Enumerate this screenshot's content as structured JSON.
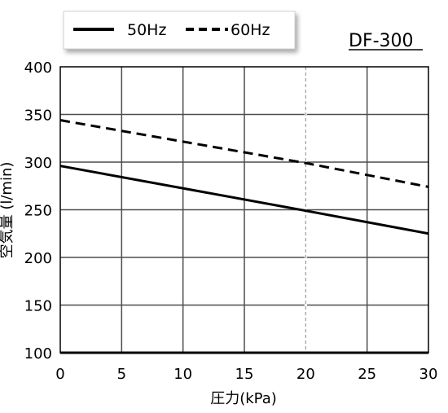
{
  "chart_data": {
    "type": "line",
    "model_label": "DF-300",
    "xlabel": "圧力(kPa)",
    "ylabel": "空気量 (l/min)",
    "xlim": [
      0,
      30
    ],
    "ylim": [
      100,
      400
    ],
    "xticks": [
      0,
      5,
      10,
      15,
      20,
      25,
      30
    ],
    "yticks": [
      100,
      150,
      200,
      250,
      300,
      350,
      400
    ],
    "grid": true,
    "reference_line_x": 20,
    "legend_position": "top-left",
    "series": [
      {
        "name": "50Hz",
        "style": "solid",
        "color": "#000000",
        "x": [
          0,
          20,
          30
        ],
        "y": [
          296,
          249,
          225
        ]
      },
      {
        "name": "60Hz",
        "style": "dashed",
        "color": "#000000",
        "x": [
          0,
          20,
          30
        ],
        "y": [
          344,
          299,
          274
        ]
      }
    ]
  }
}
